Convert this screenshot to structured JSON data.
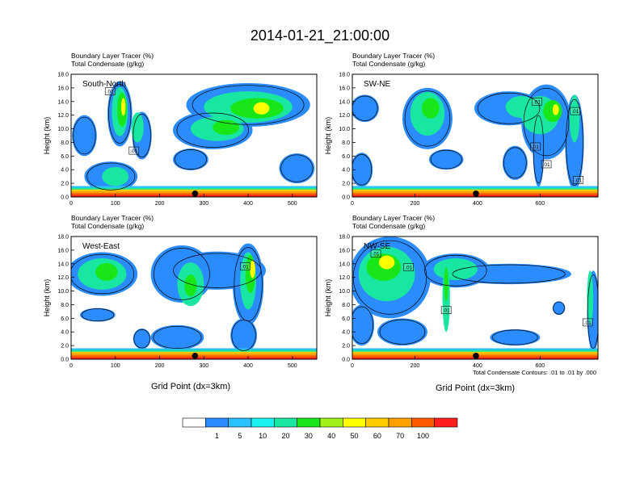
{
  "title": "2014-01-21_21:00:00",
  "panel_label_line1": "Boundary Layer Tracer   (%)",
  "panel_label_line2": "Total Condensate   (g/kg)",
  "ylabel": "Height (km)",
  "xlabel": "Grid Point (dx=3km)",
  "contour_note": "Total Condensate Contours: .01 to .01 by .000",
  "colorbar": {
    "colors": [
      "#ffffff",
      "#2b8cff",
      "#2bc0ff",
      "#19f0f0",
      "#19e6a0",
      "#19e619",
      "#a0f019",
      "#ffff00",
      "#ffcc00",
      "#ffa000",
      "#ff5a00",
      "#ff1e1e"
    ],
    "labels": [
      "1",
      "5",
      "10",
      "20",
      "30",
      "40",
      "50",
      "60",
      "70",
      "100"
    ]
  },
  "chart_data": [
    {
      "type": "heatmap",
      "name": "South-North",
      "x_ticks": [
        "0",
        "100",
        "200",
        "300",
        "400",
        "500"
      ],
      "x_tick_values": [
        0,
        100,
        200,
        300,
        400,
        500
      ],
      "xlim": [
        0,
        555
      ],
      "y_ticks": [
        "0.0",
        "2.0",
        "4.0",
        "6.0",
        "8.0",
        "10.0",
        "12.0",
        "14.0",
        "16.0",
        "18.0"
      ],
      "ylim": [
        0,
        18
      ],
      "marker_x": 280,
      "contour_labels": [
        {
          "text": ".01",
          "x": 88,
          "y": 15.5
        },
        {
          "text": ".01",
          "x": 142,
          "y": 6.8
        }
      ]
    },
    {
      "type": "heatmap",
      "name": "SW-NE",
      "x_ticks": [
        "0",
        "200",
        "400",
        "600"
      ],
      "x_tick_values": [
        0,
        200,
        400,
        600
      ],
      "xlim": [
        0,
        785
      ],
      "y_ticks": [
        "0.0",
        "2.0",
        "4.0",
        "6.0",
        "8.0",
        "10.0",
        "12.0",
        "14.0",
        "16.0",
        "18.0"
      ],
      "ylim": [
        0,
        18
      ],
      "marker_x": 395,
      "contour_labels": [
        {
          "text": ".01",
          "x": 590,
          "y": 14.0
        },
        {
          "text": ".01",
          "x": 585,
          "y": 7.4
        },
        {
          "text": ".01",
          "x": 620,
          "y": 4.8
        },
        {
          "text": ".01",
          "x": 712,
          "y": 12.6
        },
        {
          "text": ".01",
          "x": 722,
          "y": 2.5
        }
      ]
    },
    {
      "type": "heatmap",
      "name": "West-East",
      "x_ticks": [
        "0",
        "100",
        "200",
        "300",
        "400",
        "500"
      ],
      "x_tick_values": [
        0,
        100,
        200,
        300,
        400,
        500
      ],
      "xlim": [
        0,
        555
      ],
      "y_ticks": [
        "0.0",
        "2.0",
        "4.0",
        "6.0",
        "8.0",
        "10.0",
        "12.0",
        "14.0",
        "16.0",
        "18.0"
      ],
      "ylim": [
        0,
        18
      ],
      "marker_x": 280,
      "contour_labels": [
        {
          "text": ".01",
          "x": 393,
          "y": 13.6
        }
      ]
    },
    {
      "type": "heatmap",
      "name": "NW-SE",
      "x_ticks": [
        "0",
        "200",
        "400",
        "600"
      ],
      "x_tick_values": [
        0,
        200,
        400,
        600
      ],
      "xlim": [
        0,
        785
      ],
      "y_ticks": [
        "0.0",
        "2.0",
        "4.0",
        "6.0",
        "8.0",
        "10.0",
        "12.0",
        "14.0",
        "16.0",
        "18.0"
      ],
      "ylim": [
        0,
        18
      ],
      "marker_x": 395,
      "contour_labels": [
        {
          "text": ".01",
          "x": 75,
          "y": 15.5
        },
        {
          "text": ".01",
          "x": 180,
          "y": 13.5
        },
        {
          "text": ".01",
          "x": 300,
          "y": 7.2
        },
        {
          "text": ".01",
          "x": 752,
          "y": 5.4
        }
      ]
    }
  ]
}
